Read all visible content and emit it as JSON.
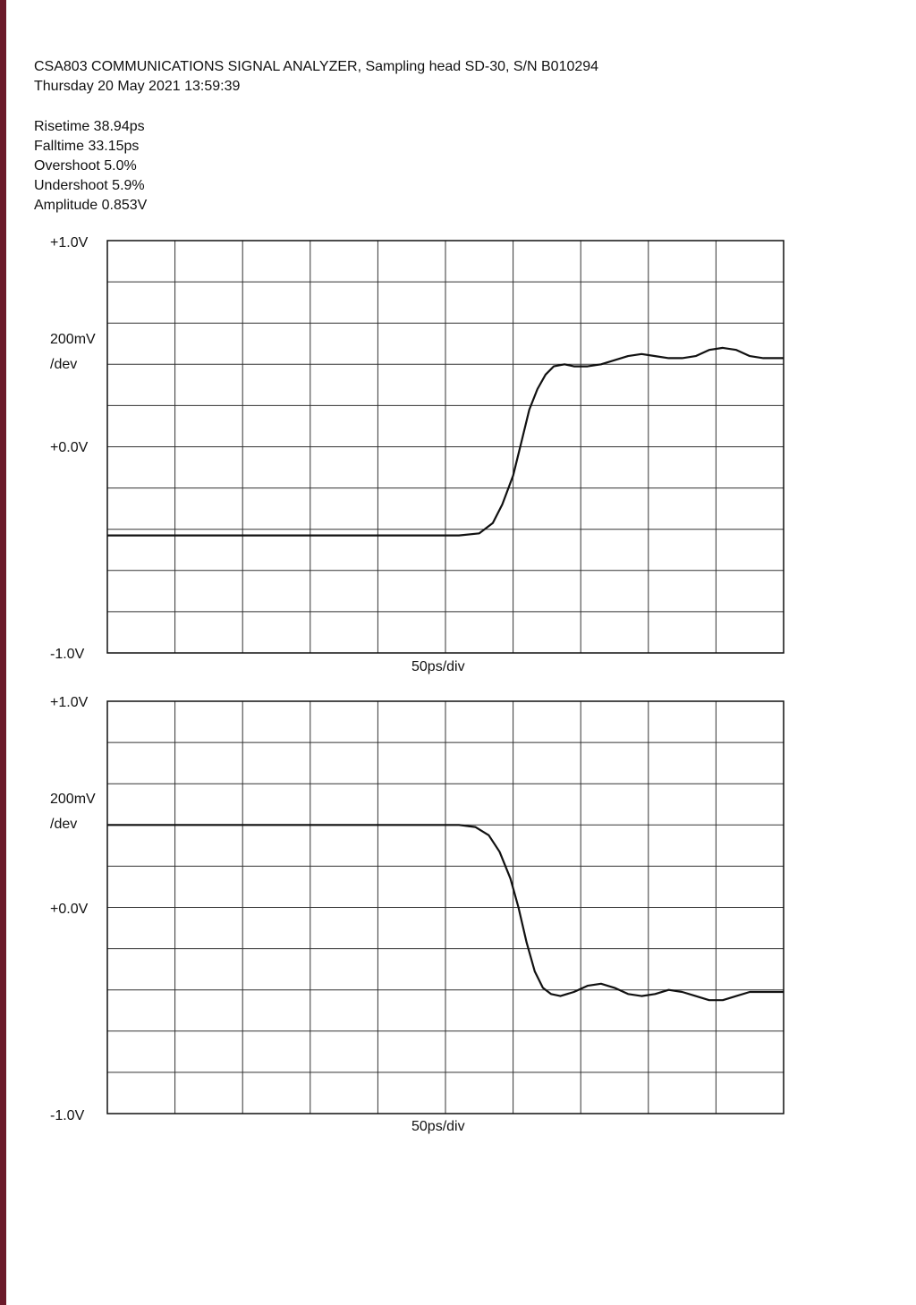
{
  "page": {
    "edge_color": "#6b1a2a"
  },
  "header": {
    "instrument_line": "CSA803 COMMUNICATIONS SIGNAL ANALYZER, Sampling head SD-30, S/N B010294",
    "timestamp": "Thursday 20 May 2021 13:59:39"
  },
  "measurements": {
    "risetime": "Risetime 38.94ps",
    "falltime": "Falltime 33.15ps",
    "overshoot": "Overshoot 5.0%",
    "undershoot": "Undershoot 5.9%",
    "amplitude": "Amplitude 0.853V"
  },
  "chart_data": [
    {
      "type": "line",
      "title": "",
      "ytop_label": "+1.0V",
      "scale_label": "200mV",
      "scale_unit": "/dev",
      "ymid_label": "+0.0V",
      "ybottom_label": "-1.0V",
      "xlabel": "50ps/div",
      "ylim": [
        -1.0,
        1.0
      ],
      "xlim": [
        0,
        500
      ],
      "x_divisions": 10,
      "y_divisions": 10,
      "grid": true,
      "trace_color": "#111111",
      "series": [
        {
          "x": [
            0,
            100,
            200,
            260,
            275,
            285,
            292,
            300,
            306,
            312,
            318,
            324,
            330,
            338,
            345,
            355,
            365,
            375,
            385,
            395,
            405,
            415,
            425,
            435,
            445,
            455,
            465,
            475,
            485,
            495,
            500
          ],
          "y": [
            -0.43,
            -0.43,
            -0.43,
            -0.43,
            -0.42,
            -0.37,
            -0.28,
            -0.14,
            0.02,
            0.18,
            0.28,
            0.35,
            0.39,
            0.4,
            0.39,
            0.39,
            0.4,
            0.42,
            0.44,
            0.45,
            0.44,
            0.43,
            0.43,
            0.44,
            0.47,
            0.48,
            0.47,
            0.44,
            0.43,
            0.43,
            0.43
          ]
        }
      ]
    },
    {
      "type": "line",
      "title": "",
      "ytop_label": "+1.0V",
      "scale_label": "200mV",
      "scale_unit": "/dev",
      "ymid_label": "+0.0V",
      "ybottom_label": "-1.0V",
      "xlabel": "50ps/div",
      "ylim": [
        -1.0,
        1.0
      ],
      "xlim": [
        0,
        500
      ],
      "x_divisions": 10,
      "y_divisions": 10,
      "grid": true,
      "trace_color": "#111111",
      "series": [
        {
          "x": [
            0,
            100,
            200,
            260,
            272,
            282,
            290,
            298,
            304,
            310,
            316,
            322,
            328,
            335,
            345,
            355,
            365,
            375,
            385,
            395,
            405,
            415,
            425,
            435,
            445,
            455,
            465,
            475,
            485,
            495,
            500
          ],
          "y": [
            0.4,
            0.4,
            0.4,
            0.4,
            0.39,
            0.35,
            0.27,
            0.14,
            0.0,
            -0.17,
            -0.31,
            -0.39,
            -0.42,
            -0.43,
            -0.41,
            -0.38,
            -0.37,
            -0.39,
            -0.42,
            -0.43,
            -0.42,
            -0.4,
            -0.41,
            -0.43,
            -0.45,
            -0.45,
            -0.43,
            -0.41,
            -0.41,
            -0.41,
            -0.41
          ]
        }
      ]
    }
  ]
}
